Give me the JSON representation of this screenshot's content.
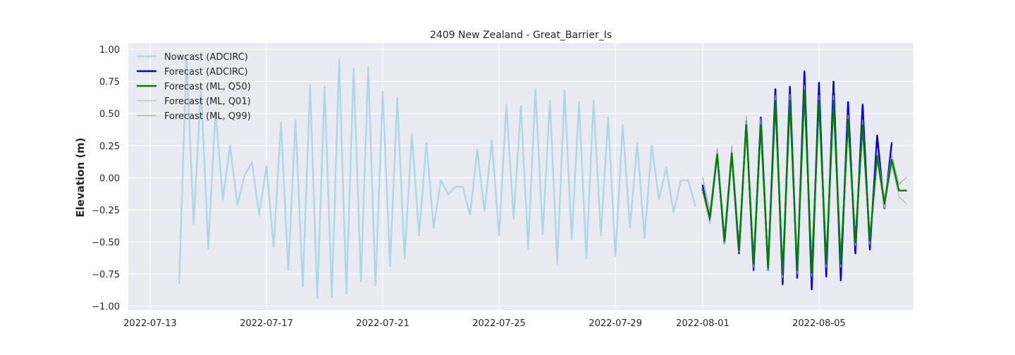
{
  "chart_data": {
    "type": "line",
    "title": "2409 New Zealand - Great_Barrier_Is",
    "xlabel": "",
    "ylabel": "Elevation (m)",
    "x_type": "date",
    "xlim": [
      "2022-07-12T06:00",
      "2022-08-08T06:00"
    ],
    "ylim": [
      -1.03,
      1.05
    ],
    "grid": true,
    "legend_position": "top-left",
    "x_ticks": [
      "2022-07-13",
      "2022-07-17",
      "2022-07-21",
      "2022-07-25",
      "2022-07-29",
      "2022-08-01",
      "2022-08-05"
    ],
    "y_ticks": [
      1.0,
      0.75,
      0.5,
      0.25,
      0.0,
      -0.25,
      -0.5,
      -0.75,
      -1.0
    ],
    "y_tick_labels": [
      "1.00",
      "0.75",
      "0.50",
      "0.25",
      "0.00",
      "−0.25",
      "−0.50",
      "−0.75",
      "−1.00"
    ],
    "series": [
      {
        "name": "Nowcast (ADCIRC)",
        "color": "#add8e6",
        "width": 2.4,
        "x": [
          "2022-07-14T00:00",
          "2022-07-14T06:00",
          "2022-07-14T12:00",
          "2022-07-14T18:00",
          "2022-07-15T00:00",
          "2022-07-15T06:00",
          "2022-07-15T12:00",
          "2022-07-15T18:00",
          "2022-07-16T00:00",
          "2022-07-16T06:00",
          "2022-07-16T12:00",
          "2022-07-16T18:00",
          "2022-07-17T00:00",
          "2022-07-17T06:00",
          "2022-07-17T12:00",
          "2022-07-17T18:00",
          "2022-07-18T00:00",
          "2022-07-18T06:00",
          "2022-07-18T12:00",
          "2022-07-18T18:00",
          "2022-07-19T00:00",
          "2022-07-19T06:00",
          "2022-07-19T12:00",
          "2022-07-19T18:00",
          "2022-07-20T00:00",
          "2022-07-20T06:00",
          "2022-07-20T12:00",
          "2022-07-20T18:00",
          "2022-07-21T00:00",
          "2022-07-21T06:00",
          "2022-07-21T12:00",
          "2022-07-21T18:00",
          "2022-07-22T00:00",
          "2022-07-22T06:00",
          "2022-07-22T12:00",
          "2022-07-22T18:00",
          "2022-07-23T00:00",
          "2022-07-23T06:00",
          "2022-07-23T12:00",
          "2022-07-23T18:00",
          "2022-07-24T00:00",
          "2022-07-24T06:00",
          "2022-07-24T12:00",
          "2022-07-24T18:00",
          "2022-07-25T00:00",
          "2022-07-25T06:00",
          "2022-07-25T12:00",
          "2022-07-25T18:00",
          "2022-07-26T00:00",
          "2022-07-26T06:00",
          "2022-07-26T12:00",
          "2022-07-26T18:00",
          "2022-07-27T00:00",
          "2022-07-27T06:00",
          "2022-07-27T12:00",
          "2022-07-27T18:00",
          "2022-07-28T00:00",
          "2022-07-28T06:00",
          "2022-07-28T12:00",
          "2022-07-28T18:00",
          "2022-07-29T00:00",
          "2022-07-29T06:00",
          "2022-07-29T12:00",
          "2022-07-29T18:00",
          "2022-07-30T00:00",
          "2022-07-30T06:00",
          "2022-07-30T12:00",
          "2022-07-30T18:00",
          "2022-07-31T00:00",
          "2022-07-31T06:00",
          "2022-07-31T12:00",
          "2022-07-31T18:00"
        ],
        "y": [
          -0.82,
          0.95,
          -0.36,
          0.71,
          -0.55,
          0.52,
          -0.17,
          0.25,
          -0.21,
          0.02,
          0.12,
          -0.29,
          0.09,
          -0.54,
          0.43,
          -0.72,
          0.45,
          -0.85,
          0.72,
          -0.94,
          0.71,
          -0.93,
          0.92,
          -0.9,
          0.85,
          -0.81,
          0.86,
          -0.84,
          0.67,
          -0.69,
          0.62,
          -0.63,
          0.34,
          -0.45,
          0.27,
          -0.39,
          -0.02,
          -0.13,
          -0.07,
          -0.07,
          -0.29,
          0.22,
          -0.26,
          0.29,
          -0.45,
          0.57,
          -0.32,
          0.56,
          -0.55,
          0.69,
          -0.44,
          0.6,
          -0.67,
          0.68,
          -0.48,
          0.59,
          -0.63,
          0.6,
          -0.45,
          0.47,
          -0.61,
          0.41,
          -0.39,
          0.27,
          -0.47,
          0.25,
          -0.17,
          0.08,
          -0.27,
          -0.02,
          -0.02,
          -0.22
        ]
      },
      {
        "name": "Forecast (ADCIRC)",
        "color": "#0000dd",
        "width": 2.4,
        "x": [
          "2022-08-01T00:00",
          "2022-08-01T06:00",
          "2022-08-01T12:00",
          "2022-08-01T18:00",
          "2022-08-02T00:00",
          "2022-08-02T06:00",
          "2022-08-02T12:00",
          "2022-08-02T18:00",
          "2022-08-03T00:00",
          "2022-08-03T06:00",
          "2022-08-03T12:00",
          "2022-08-03T18:00",
          "2022-08-04T00:00",
          "2022-08-04T06:00",
          "2022-08-04T12:00",
          "2022-08-04T18:00",
          "2022-08-05T00:00",
          "2022-08-05T06:00",
          "2022-08-05T12:00",
          "2022-08-05T18:00",
          "2022-08-06T00:00",
          "2022-08-06T06:00",
          "2022-08-06T12:00",
          "2022-08-06T18:00",
          "2022-08-07T00:00",
          "2022-08-07T06:00",
          "2022-08-07T12:00"
        ],
        "y": [
          -0.06,
          -0.33,
          0.19,
          -0.51,
          0.19,
          -0.59,
          0.44,
          -0.72,
          0.47,
          -0.72,
          0.69,
          -0.83,
          0.71,
          -0.78,
          0.83,
          -0.87,
          0.74,
          -0.77,
          0.75,
          -0.8,
          0.59,
          -0.59,
          0.57,
          -0.56,
          0.33,
          -0.24,
          0.27
        ]
      },
      {
        "name": "Forecast (ML, Q50)",
        "color": "#008000",
        "width": 2.4,
        "x": [
          "2022-08-01T00:00",
          "2022-08-01T06:00",
          "2022-08-01T12:00",
          "2022-08-01T18:00",
          "2022-08-02T00:00",
          "2022-08-02T06:00",
          "2022-08-02T12:00",
          "2022-08-02T18:00",
          "2022-08-03T00:00",
          "2022-08-03T06:00",
          "2022-08-03T12:00",
          "2022-08-03T18:00",
          "2022-08-04T00:00",
          "2022-08-04T06:00",
          "2022-08-04T12:00",
          "2022-08-04T18:00",
          "2022-08-05T00:00",
          "2022-08-05T06:00",
          "2022-08-05T12:00",
          "2022-08-05T18:00",
          "2022-08-06T00:00",
          "2022-08-06T06:00",
          "2022-08-06T12:00",
          "2022-08-06T18:00",
          "2022-08-07T00:00",
          "2022-08-07T06:00",
          "2022-08-07T12:00",
          "2022-08-07T18:00",
          "2022-08-08T00:00"
        ],
        "y": [
          -0.09,
          -0.31,
          0.18,
          -0.49,
          0.19,
          -0.56,
          0.41,
          -0.67,
          0.41,
          -0.7,
          0.6,
          -0.75,
          0.6,
          -0.72,
          0.68,
          -0.74,
          0.6,
          -0.67,
          0.6,
          -0.67,
          0.45,
          -0.5,
          0.41,
          -0.49,
          0.17,
          -0.2,
          0.14,
          -0.1,
          -0.1
        ]
      },
      {
        "name": "Forecast (ML, Q01)",
        "color": "#b8b8c4",
        "width": 1.2,
        "x": [
          "2022-08-01T00:00",
          "2022-08-01T06:00",
          "2022-08-01T12:00",
          "2022-08-01T18:00",
          "2022-08-02T00:00",
          "2022-08-02T06:00",
          "2022-08-02T12:00",
          "2022-08-02T18:00",
          "2022-08-03T00:00",
          "2022-08-03T06:00",
          "2022-08-03T12:00",
          "2022-08-03T18:00",
          "2022-08-04T00:00",
          "2022-08-04T06:00",
          "2022-08-04T12:00",
          "2022-08-04T18:00",
          "2022-08-05T00:00",
          "2022-08-05T06:00",
          "2022-08-05T12:00",
          "2022-08-05T18:00",
          "2022-08-06T00:00",
          "2022-08-06T06:00",
          "2022-08-06T12:00",
          "2022-08-06T18:00",
          "2022-08-07T00:00",
          "2022-08-07T06:00",
          "2022-08-07T12:00",
          "2022-08-07T18:00",
          "2022-08-08T00:00"
        ],
        "y": [
          -0.12,
          -0.36,
          0.15,
          -0.52,
          0.16,
          -0.58,
          0.38,
          -0.7,
          0.38,
          -0.73,
          0.56,
          -0.78,
          0.56,
          -0.75,
          0.64,
          -0.77,
          0.56,
          -0.7,
          0.56,
          -0.7,
          0.41,
          -0.53,
          0.37,
          -0.52,
          0.13,
          -0.24,
          0.1,
          -0.15,
          -0.2
        ]
      },
      {
        "name": "Forecast (ML, Q99)",
        "color": "#a8a8a8",
        "width": 1.2,
        "x": [
          "2022-08-01T00:00",
          "2022-08-01T06:00",
          "2022-08-01T12:00",
          "2022-08-01T18:00",
          "2022-08-02T00:00",
          "2022-08-02T06:00",
          "2022-08-02T12:00",
          "2022-08-02T18:00",
          "2022-08-03T00:00",
          "2022-08-03T06:00",
          "2022-08-03T12:00",
          "2022-08-03T18:00",
          "2022-08-04T00:00",
          "2022-08-04T06:00",
          "2022-08-04T12:00",
          "2022-08-04T18:00",
          "2022-08-05T00:00",
          "2022-08-05T06:00",
          "2022-08-05T12:00",
          "2022-08-05T18:00",
          "2022-08-06T00:00",
          "2022-08-06T06:00",
          "2022-08-06T12:00",
          "2022-08-06T18:00",
          "2022-08-07T00:00",
          "2022-08-07T06:00",
          "2022-08-07T12:00",
          "2022-08-07T18:00",
          "2022-08-08T00:00"
        ],
        "y": [
          0.0,
          -0.26,
          0.23,
          -0.45,
          0.25,
          -0.52,
          0.48,
          -0.63,
          0.46,
          -0.66,
          0.64,
          -0.71,
          0.65,
          -0.69,
          0.72,
          -0.71,
          0.64,
          -0.64,
          0.64,
          -0.64,
          0.49,
          -0.47,
          0.45,
          -0.46,
          0.21,
          -0.16,
          0.18,
          -0.05,
          0.0
        ]
      }
    ]
  }
}
